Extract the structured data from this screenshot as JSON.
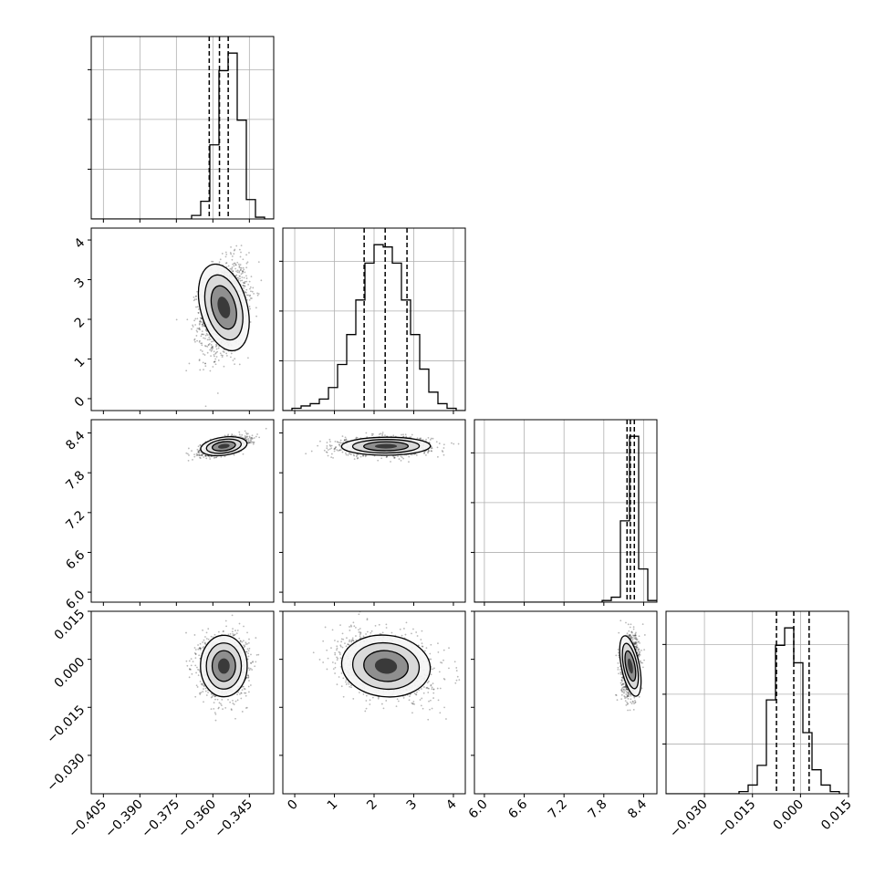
{
  "chart_data": {
    "type": "corner",
    "parameters": 4,
    "grid": true,
    "axes": {
      "p0": {
        "range": [
          -0.41,
          -0.335
        ],
        "ticks": [
          "−0.405",
          "−0.390",
          "−0.375",
          "−0.360",
          "−0.345"
        ],
        "tick_values": [
          -0.405,
          -0.39,
          -0.375,
          -0.36,
          -0.345
        ]
      },
      "p1": {
        "range": [
          -0.3,
          4.3
        ],
        "ticks": [
          "0",
          "1",
          "2",
          "3",
          "4"
        ],
        "tick_values": [
          0,
          1,
          2,
          3,
          4
        ]
      },
      "p2": {
        "range": [
          5.85,
          8.6
        ],
        "ticks": [
          "6.0",
          "6.6",
          "7.2",
          "7.8",
          "8.4"
        ],
        "tick_values": [
          6.0,
          6.6,
          7.2,
          7.8,
          8.4
        ]
      },
      "p3": {
        "range": [
          -0.042,
          0.015
        ],
        "ticks": [
          "−0.030",
          "−0.015",
          "0.000",
          "0.015"
        ],
        "tick_values": [
          -0.03,
          -0.015,
          0.0,
          0.015
        ]
      }
    },
    "histograms": [
      {
        "param": "p0",
        "bin_edges": [
          -0.41,
          -0.40625,
          -0.4025,
          -0.39875,
          -0.395,
          -0.39125,
          -0.3875,
          -0.38375,
          -0.38,
          -0.37625,
          -0.3725,
          -0.36875,
          -0.365,
          -0.36125,
          -0.3575,
          -0.35375,
          -0.35,
          -0.34625,
          -0.3425,
          -0.33875,
          -0.335
        ],
        "counts": [
          0,
          0,
          0,
          0,
          0,
          0,
          0,
          0,
          0,
          0,
          0,
          2,
          10,
          42,
          84,
          94,
          56,
          11,
          1,
          0
        ],
        "quantiles": [
          -0.3615,
          -0.3573,
          -0.3537
        ]
      },
      {
        "param": "p1",
        "bin_edges": [
          -0.3,
          -0.07,
          0.16,
          0.39,
          0.62,
          0.85,
          1.08,
          1.31,
          1.54,
          1.77,
          2.0,
          2.23,
          2.46,
          2.69,
          2.92,
          3.15,
          3.38,
          3.61,
          3.84,
          4.07,
          4.3
        ],
        "counts": [
          0,
          1,
          2,
          3,
          5,
          10,
          20,
          33,
          48,
          64,
          72,
          71,
          64,
          48,
          33,
          18,
          8,
          3,
          1,
          0
        ],
        "quantiles": [
          1.75,
          2.28,
          2.83
        ]
      },
      {
        "param": "p2",
        "bin_edges": [
          5.85,
          5.9875,
          6.125,
          6.2625,
          6.4,
          6.5375,
          6.675,
          6.8125,
          6.95,
          7.0875,
          7.225,
          7.3625,
          7.5,
          7.6375,
          7.775,
          7.9125,
          8.05,
          8.1875,
          8.325,
          8.4625,
          8.6
        ],
        "counts": [
          0,
          0,
          0,
          0,
          0,
          0,
          0,
          0,
          0,
          0,
          0,
          0,
          0,
          0,
          1,
          3,
          49,
          100,
          20,
          1
        ],
        "quantiles": [
          8.15,
          8.2,
          8.26
        ]
      },
      {
        "param": "p3",
        "bin_edges": [
          -0.042,
          -0.03915,
          -0.0363,
          -0.03345,
          -0.0306,
          -0.02775,
          -0.0249,
          -0.02205,
          -0.0192,
          -0.01635,
          -0.0135,
          -0.01065,
          -0.0078,
          -0.00495,
          -0.0021,
          0.00075,
          0.0036,
          0.00645,
          0.0093,
          0.01215,
          0.015
        ],
        "counts": [
          0,
          0,
          0,
          0,
          0,
          0,
          0,
          0,
          1,
          4,
          13,
          43,
          68,
          76,
          60,
          28,
          11,
          4,
          1,
          0
        ],
        "quantiles": [
          -0.0075,
          -0.0021,
          0.0027
        ]
      }
    ],
    "pairs": [
      {
        "x": "p0",
        "y": "p1",
        "center": [
          -0.3555,
          2.3
        ],
        "sigma": [
          0.0048,
          0.56
        ],
        "corr": 0.25,
        "n_points": 1700
      },
      {
        "x": "p0",
        "y": "p2",
        "center": [
          -0.3555,
          8.2
        ],
        "sigma": [
          0.0048,
          0.068
        ],
        "corr": 0.6,
        "n_points": 1300
      },
      {
        "x": "p1",
        "y": "p2",
        "center": [
          2.3,
          8.2
        ],
        "sigma": [
          0.56,
          0.068
        ],
        "corr": 0.05,
        "n_points": 1300
      },
      {
        "x": "p0",
        "y": "p3",
        "center": [
          -0.3555,
          -0.0021
        ],
        "sigma": [
          0.0048,
          0.0048
        ],
        "corr": 0.0,
        "n_points": 1500
      },
      {
        "x": "p1",
        "y": "p3",
        "center": [
          2.3,
          -0.0021
        ],
        "sigma": [
          0.56,
          0.0048
        ],
        "corr": -0.25,
        "n_points": 1700
      },
      {
        "x": "p2",
        "y": "p3",
        "center": [
          8.2,
          -0.0021
        ],
        "sigma": [
          0.068,
          0.0048
        ],
        "corr": 0.1,
        "n_points": 1100
      }
    ]
  }
}
